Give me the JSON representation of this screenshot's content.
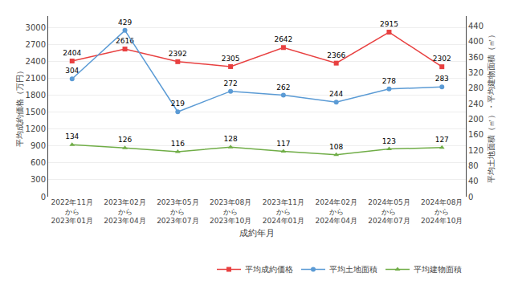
{
  "chart_data": {
    "type": "line",
    "xlabel": "成約年月",
    "ylabel": "平均成約価格（万円）",
    "y2label": "平均土地面積（㎡）・平均建物面積（㎡）",
    "categories": [
      "2022年11月\nから\n2023年01月",
      "2023年02月\nから\n2023年04月",
      "2023年05月\nから\n2023年07月",
      "2023年08月\nから\n2023年10月",
      "2023年11月\nから\n2024年01月",
      "2024年02月\nから\n2024年04月",
      "2024年05月\nから\n2024年07月",
      "2024年08月\nから\n2024年10月"
    ],
    "series": [
      {
        "name": "平均成約価格",
        "color": "#e84040",
        "marker": "square",
        "values": [
          2404,
          2616,
          2392,
          2305,
          2642,
          2366,
          2915,
          2302
        ]
      },
      {
        "name": "平均土地面積",
        "color": "#5b9bd5",
        "marker": "circle",
        "axis": "y2",
        "values": [
          304,
          429,
          219,
          272,
          262,
          244,
          278,
          283
        ]
      },
      {
        "name": "平均建物面積",
        "color": "#70ad47",
        "marker": "triangle-up",
        "axis": "y2",
        "values": [
          134,
          126,
          116,
          128,
          117,
          108,
          123,
          127
        ]
      }
    ],
    "ylim": [
      0,
      3200
    ],
    "yticks": [
      0,
      300,
      600,
      900,
      1200,
      1500,
      1800,
      2100,
      2400,
      2700,
      3000
    ],
    "y2lim": [
      0,
      466
    ],
    "y2ticks": [
      0,
      40,
      80,
      120,
      160,
      200,
      240,
      280,
      320,
      360,
      400,
      440
    ],
    "grid": true,
    "legend": "lower right",
    "data_labels": true
  }
}
